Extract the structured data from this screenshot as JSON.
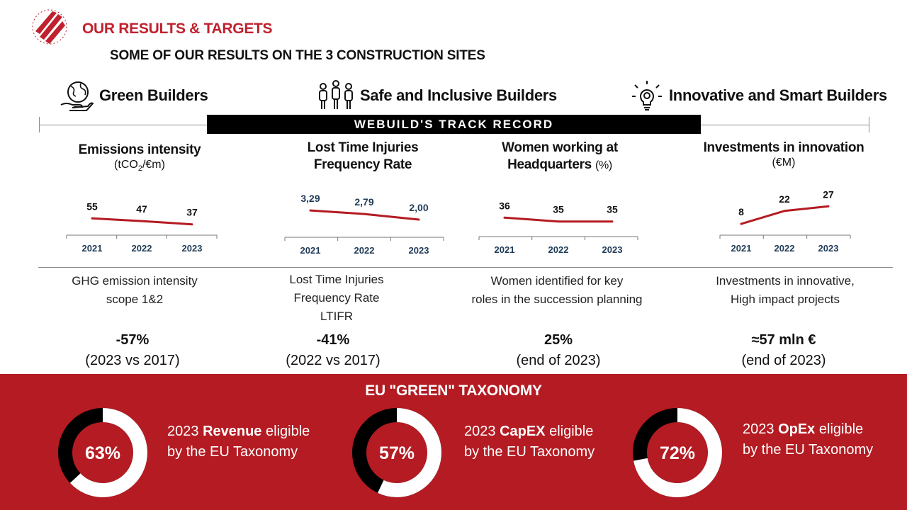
{
  "header": {
    "title": "OUR RESULTS & TARGETS",
    "subtitle": "SOME OF OUR RESULTS ON THE 3 CONSTRUCTION SITES"
  },
  "pillars": [
    {
      "label": "Green Builders",
      "icon": "globe-hand-icon"
    },
    {
      "label": "Safe and Inclusive Builders",
      "icon": "people-group-icon"
    },
    {
      "label": "Innovative and Smart Builders",
      "icon": "lightbulb-gear-icon"
    }
  ],
  "track_record": "WEBUILD'S  TRACK  RECORD",
  "kpis": [
    {
      "title": "Emissions intensity",
      "unit_prefix": "(tCO",
      "unit_sub": "2",
      "unit_suffix": "/€m)",
      "description": [
        "GHG emission intensity",
        "scope 1&2"
      ],
      "result": "-57%",
      "result_note": "(2023 vs 2017)"
    },
    {
      "title_lines": [
        "Lost Time Injuries",
        "Frequency Rate"
      ],
      "description": [
        "Lost Time Injuries",
        "Frequency Rate",
        "LTIFR"
      ],
      "result": "-41%",
      "result_note": "(2022 vs 2017)"
    },
    {
      "title_lines": [
        "Women working at",
        "Headquarters"
      ],
      "title_unit": "(%)",
      "description": [
        "Women identified for key",
        "roles in the succession planning"
      ],
      "result": "25%",
      "result_note": "(end of 2023)"
    },
    {
      "title": "Investments in innovation",
      "unit": "(€M)",
      "description": [
        "Investments in innovative,",
        "High impact projects"
      ],
      "result": "≈57 mln €",
      "result_note": "(end of 2023)"
    }
  ],
  "chart_data": [
    {
      "type": "line",
      "categories": [
        "2021",
        "2022",
        "2023"
      ],
      "values": [
        55,
        47,
        37
      ],
      "labels": [
        "55",
        "47",
        "37"
      ],
      "color": "#b41b22",
      "label_color": "#111111"
    },
    {
      "type": "line",
      "categories": [
        "2021",
        "2022",
        "2023"
      ],
      "values": [
        3.29,
        2.79,
        2.0
      ],
      "labels": [
        "3,29",
        "2,79",
        "2,00"
      ],
      "color": "#b41b22",
      "label_color": "#1f3b57"
    },
    {
      "type": "line",
      "categories": [
        "2021",
        "2022",
        "2023"
      ],
      "values": [
        36,
        35,
        35
      ],
      "labels": [
        "36",
        "35",
        "35"
      ],
      "color": "#b41b22",
      "label_color": "#111111"
    },
    {
      "type": "line",
      "categories": [
        "2021",
        "2022",
        "2023"
      ],
      "values": [
        8,
        22,
        27
      ],
      "labels": [
        "8",
        "22",
        "27"
      ],
      "color": "#b41b22",
      "label_color": "#111111"
    },
    {
      "type": "pie",
      "title": "EU \"GREEN\" TAXONOMY",
      "slices": [
        {
          "value": 63,
          "label": "63%",
          "year": "2023",
          "metric": "Revenue",
          "suffix": "eligible",
          "line2": "by the EU Taxonomy"
        },
        {
          "value": 57,
          "label": "57%",
          "year": "2023",
          "metric": "CapEX",
          "suffix": "eligible",
          "line2": "by the EU Taxonomy"
        },
        {
          "value": 72,
          "label": "72%",
          "year": "2023",
          "metric": "OpEx",
          "suffix": "eligible",
          "line2": "by the EU Taxonomy"
        }
      ],
      "colors": {
        "eligible": "#ffffff",
        "other": "#000000",
        "center": "#b41b22"
      }
    }
  ]
}
